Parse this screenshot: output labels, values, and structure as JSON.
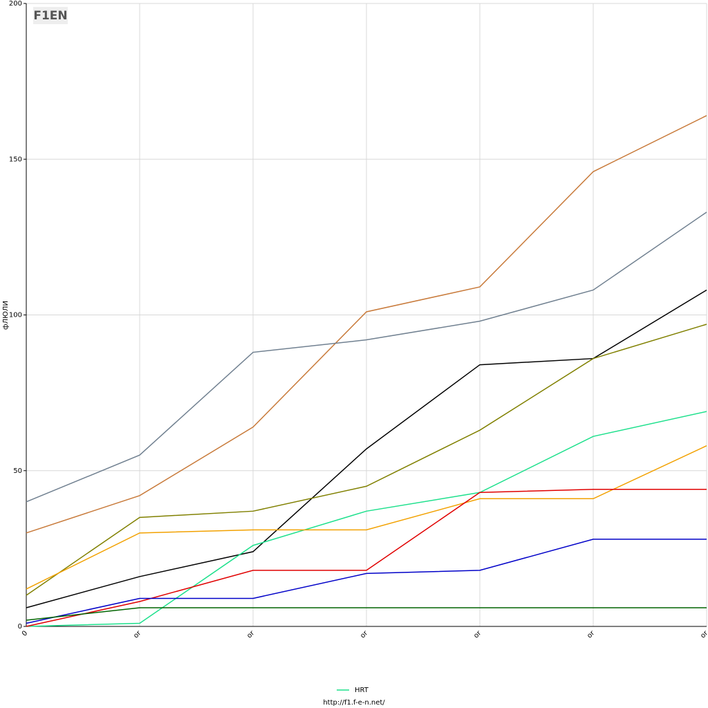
{
  "logo": "F1EN",
  "chart_data": {
    "type": "line",
    "ylabel": "фЛЮЛИ",
    "categories": [
      "0",
      "or",
      "or",
      "or",
      "or",
      "or",
      "or"
    ],
    "ylim": [
      0,
      200
    ],
    "yticks": [
      0,
      50,
      100,
      150,
      200
    ],
    "grid": true,
    "series": [
      {
        "color": "#c87a3a",
        "values": [
          30,
          42,
          64,
          101,
          109,
          146,
          164
        ]
      },
      {
        "color": "#708090",
        "values": [
          40,
          55,
          88,
          92,
          98,
          108,
          133
        ]
      },
      {
        "color": "#000000",
        "values": [
          6,
          16,
          24,
          57,
          84,
          86,
          108
        ]
      },
      {
        "color": "#808000",
        "values": [
          10,
          35,
          37,
          45,
          63,
          86,
          97
        ]
      },
      {
        "name": "HRT",
        "color": "#1de08c",
        "values": [
          0,
          1,
          26,
          37,
          43,
          61,
          69
        ]
      },
      {
        "color": "#f2a100",
        "values": [
          12,
          30,
          31,
          31,
          41,
          41,
          58
        ]
      },
      {
        "color": "#e00000",
        "values": [
          0,
          8,
          18,
          18,
          43,
          44,
          44
        ]
      },
      {
        "color": "#0000c8",
        "values": [
          1,
          9,
          9,
          17,
          18,
          28,
          28
        ]
      },
      {
        "color": "#006400",
        "values": [
          2,
          6,
          6,
          6,
          6,
          6,
          6
        ]
      }
    ],
    "legend": "bottom",
    "footer": "http://f1.f-e-n.net/"
  }
}
